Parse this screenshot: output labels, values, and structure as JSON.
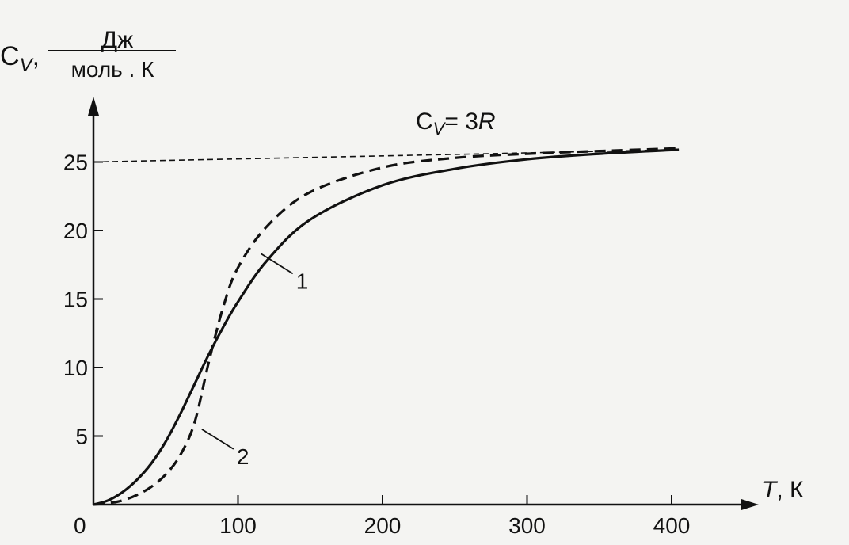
{
  "chart_data": {
    "type": "line",
    "title": "",
    "ylabel": {
      "symbol": "C",
      "sub": "V",
      "sep": ",",
      "unit_num": "Дж",
      "unit_den": "моль . К"
    },
    "xlabel": {
      "symbol": "T",
      "unit": ", К"
    },
    "annotation": {
      "symbol": "C",
      "sub": "V",
      "rest": "= 3",
      "italic": "R"
    },
    "xlim": [
      0,
      420
    ],
    "ylim": [
      0,
      28
    ],
    "x_ticks": [
      100,
      200,
      300,
      400
    ],
    "x_tick_labels": [
      "100",
      "200",
      "300",
      "400"
    ],
    "y_ticks": [
      5,
      10,
      15,
      20,
      25
    ],
    "y_tick_labels": [
      "5",
      "10",
      "15",
      "20",
      "25"
    ],
    "origin_label": "0",
    "grid": false,
    "asymptote": {
      "x": [
        0,
        405
      ],
      "y": [
        25,
        25.9
      ]
    },
    "series": [
      {
        "name": "1",
        "style": "solid",
        "x": [
          0,
          10,
          20,
          30,
          40,
          50,
          60,
          70,
          80,
          90,
          100,
          120,
          150,
          200,
          250,
          300,
          350,
          405
        ],
        "y": [
          0,
          0.3,
          0.9,
          1.8,
          3.0,
          4.6,
          6.6,
          8.8,
          11.0,
          13.0,
          14.8,
          17.8,
          20.8,
          23.3,
          24.5,
          25.2,
          25.6,
          25.9
        ],
        "label_at": [
          116,
          18.3
        ]
      },
      {
        "name": "2",
        "style": "dashed",
        "x": [
          0,
          10,
          20,
          30,
          40,
          50,
          60,
          70,
          80,
          90,
          100,
          120,
          150,
          200,
          250,
          300,
          350,
          405
        ],
        "y": [
          0,
          0.1,
          0.3,
          0.7,
          1.3,
          2.2,
          3.6,
          6.0,
          10.5,
          14.5,
          17.3,
          20.3,
          22.8,
          24.6,
          25.3,
          25.6,
          25.8,
          26.0
        ],
        "label_at": [
          75,
          5.5
        ]
      }
    ]
  },
  "colors": {
    "ink": "#111111",
    "paper": "#f4f4f2"
  }
}
